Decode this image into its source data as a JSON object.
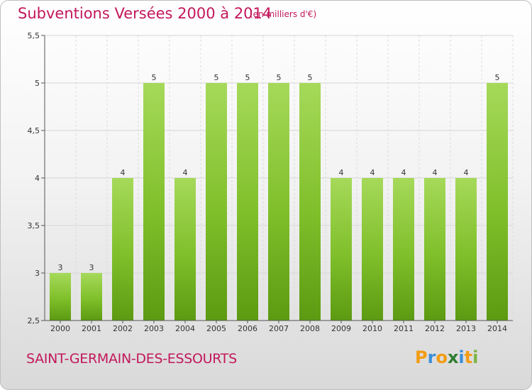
{
  "chart_data": {
    "type": "bar",
    "title": "Subventions Versées 2000 à 2014",
    "subtitle": "(en milliers d'€)",
    "categories": [
      "2000",
      "2001",
      "2002",
      "2003",
      "2004",
      "2005",
      "2006",
      "2007",
      "2008",
      "2009",
      "2010",
      "2011",
      "2012",
      "2013",
      "2014"
    ],
    "values": [
      3,
      3,
      4,
      5,
      4,
      5,
      5,
      5,
      5,
      4,
      4,
      4,
      4,
      4,
      5
    ],
    "ylim": [
      2.5,
      5.5
    ],
    "yticks": [
      2.5,
      3,
      3.5,
      4,
      4.5,
      5,
      5.5
    ],
    "ytick_labels": [
      "2,5",
      "3",
      "3,5",
      "4",
      "4,5",
      "5",
      "5,5"
    ],
    "xlabel": "",
    "ylabel": "",
    "bar_color": "#7fbf2a",
    "bar_color_light": "#a6d95a",
    "bar_color_dark": "#5c9a12"
  },
  "footer": {
    "commune": "SAINT-GERMAIN-DES-ESSOURTS",
    "logo_letters": [
      "P",
      "r",
      "o",
      "x",
      "i",
      "t",
      "i"
    ],
    "logo_colors": [
      "#f39c12",
      "#3a8fd8",
      "#f39c12",
      "#2e7d32",
      "#3a8fd8",
      "#f39c12",
      "#7cb342"
    ]
  },
  "colors": {
    "title": "#c2185b"
  }
}
